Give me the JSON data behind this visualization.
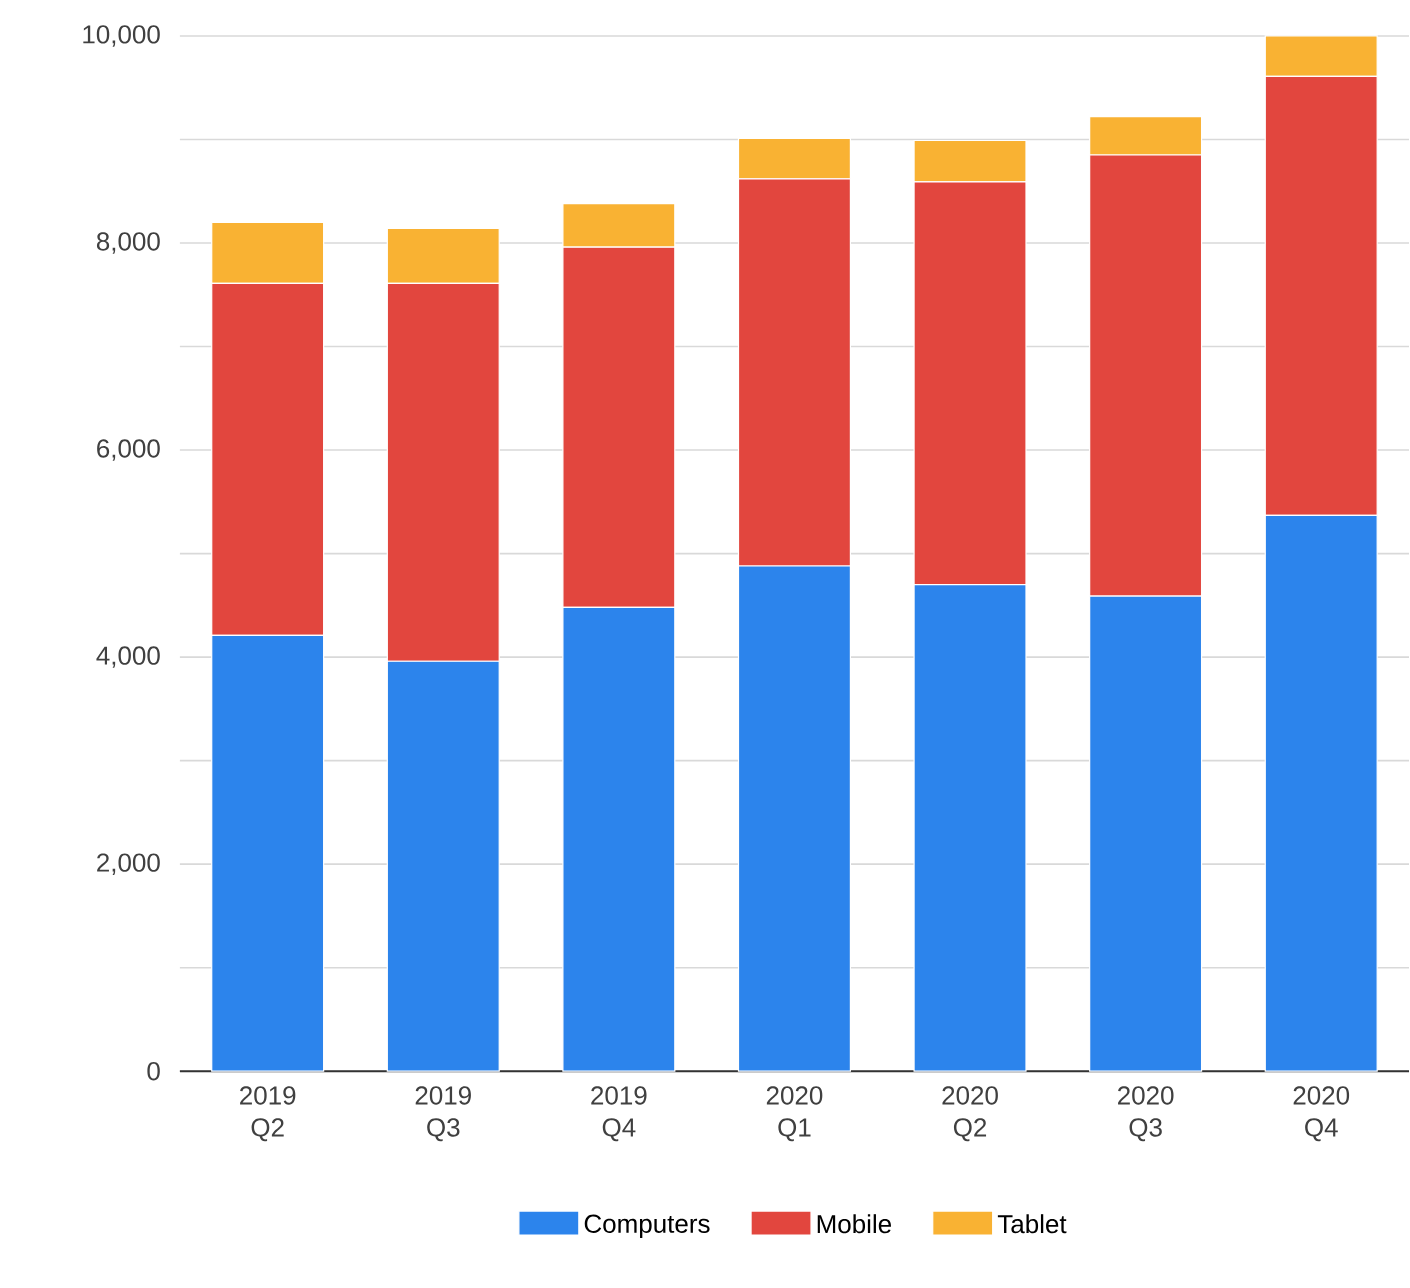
{
  "chart_data": {
    "type": "bar",
    "stacked": true,
    "categories": [
      "2019 Q2",
      "2019 Q3",
      "2019 Q4",
      "2020 Q1",
      "2020 Q2",
      "2020 Q3",
      "2020 Q4"
    ],
    "series": [
      {
        "name": "Computers",
        "color": "#2c84ec",
        "values": [
          4210,
          3960,
          4480,
          4880,
          4700,
          4590,
          5370
        ]
      },
      {
        "name": "Mobile",
        "color": "#e2463e",
        "values": [
          3400,
          3650,
          3480,
          3740,
          3890,
          4260,
          4240
        ]
      },
      {
        "name": "Tablet",
        "color": "#f9b233",
        "values": [
          590,
          530,
          420,
          390,
          400,
          370,
          390
        ]
      }
    ],
    "ylim": [
      0,
      10000
    ],
    "yticks": [
      {
        "value": 0,
        "label": "0"
      },
      {
        "value": 1000,
        "label": null
      },
      {
        "value": 2000,
        "label": "2,000"
      },
      {
        "value": 3000,
        "label": null
      },
      {
        "value": 4000,
        "label": "4,000"
      },
      {
        "value": 5000,
        "label": null
      },
      {
        "value": 6000,
        "label": "6,000"
      },
      {
        "value": 7000,
        "label": null
      },
      {
        "value": 8000,
        "label": "8,000"
      },
      {
        "value": 9000,
        "label": null
      },
      {
        "value": 10000,
        "label": "10,000"
      }
    ],
    "grid": "y",
    "legend": "bottom"
  }
}
